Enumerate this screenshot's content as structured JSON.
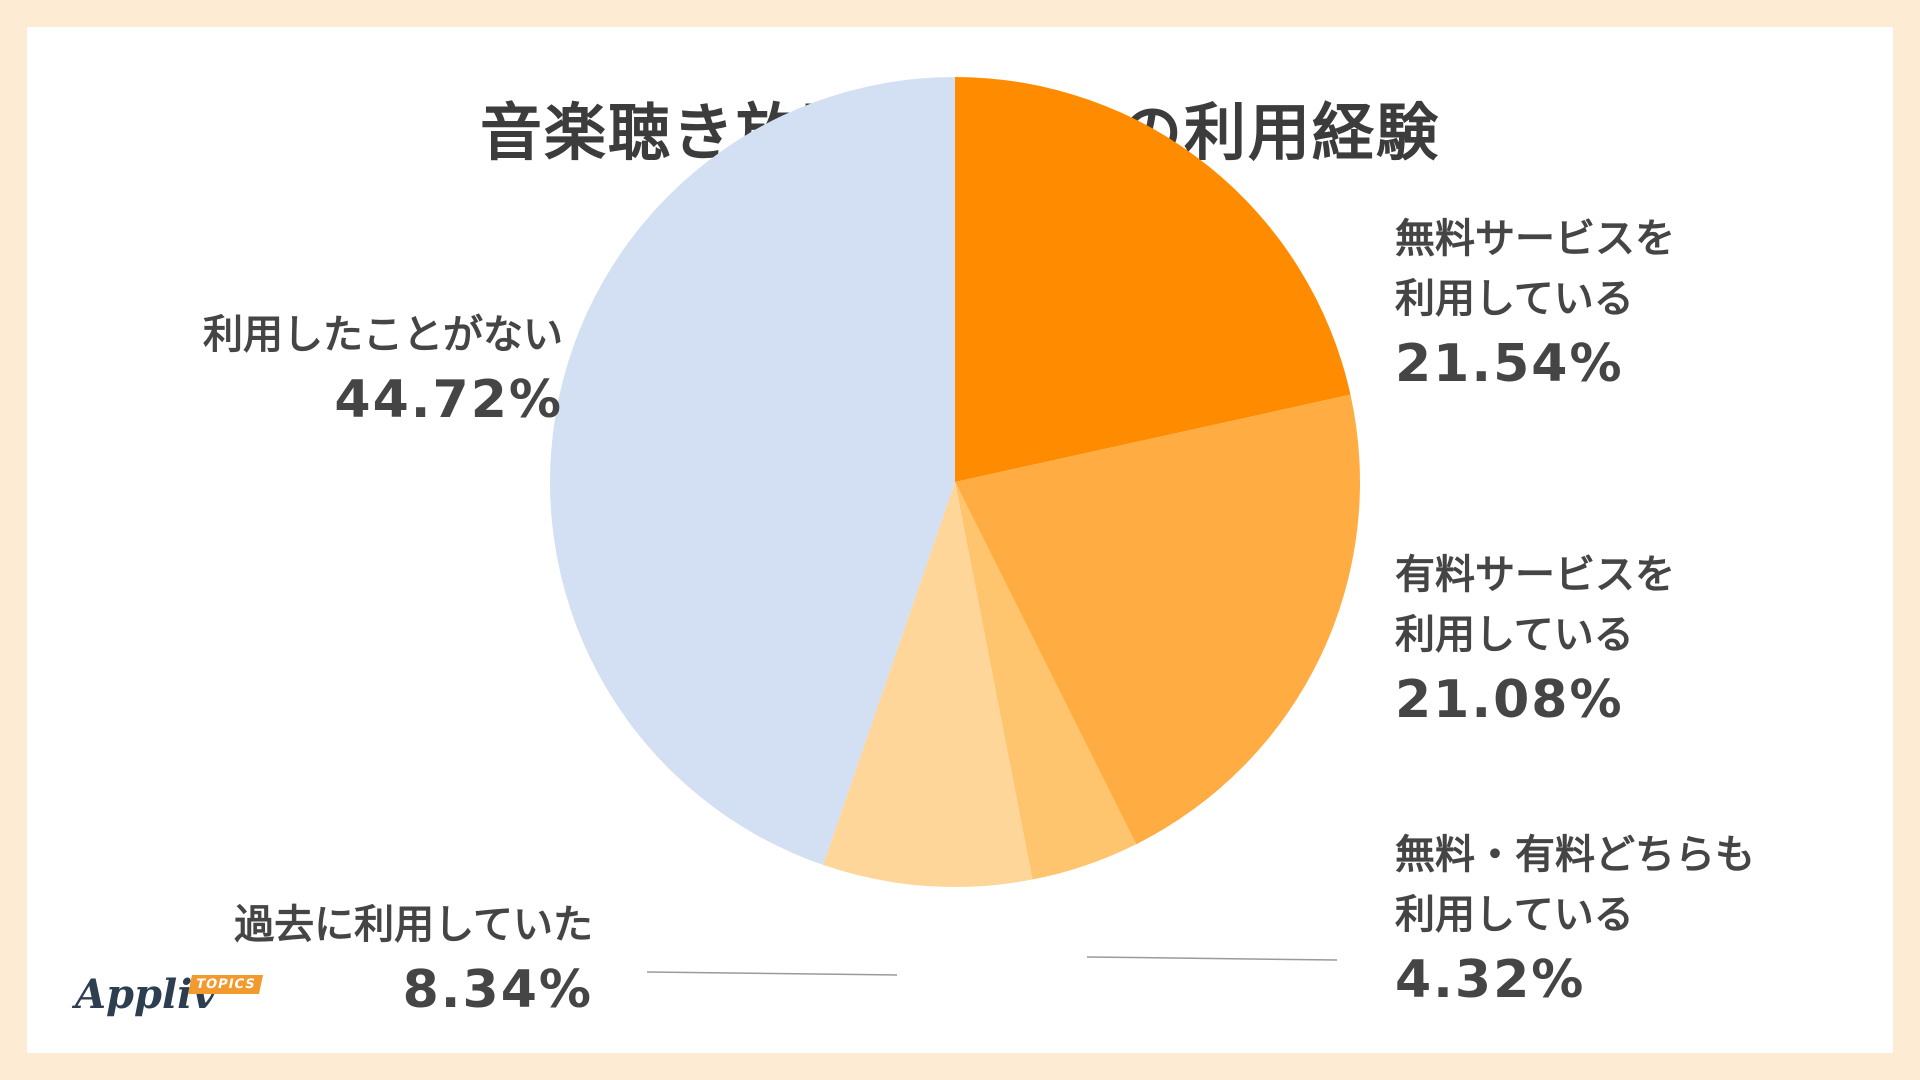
{
  "title": "音楽聴き放題サービスの利用経験",
  "logo": {
    "text": "Appliv",
    "tag": "TOPICS"
  },
  "chart_data": {
    "type": "pie",
    "title": "音楽聴き放題サービスの利用経験",
    "unit": "%",
    "slices": [
      {
        "label_lines": [
          "無料サービスを",
          "利用している"
        ],
        "value": 21.54,
        "value_text": "21.54%",
        "color": "#ff8c00"
      },
      {
        "label_lines": [
          "有料サービスを",
          "利用している"
        ],
        "value": 21.08,
        "value_text": "21.08%",
        "color": "#ffad42"
      },
      {
        "label_lines": [
          "無料・有料どちらも",
          "利用している"
        ],
        "value": 4.32,
        "value_text": "4.32%",
        "color": "#ffc56e"
      },
      {
        "label_lines": [
          "過去に利用していた"
        ],
        "value": 8.34,
        "value_text": "8.34%",
        "color": "#ffd699"
      },
      {
        "label_lines": [
          "利用したことがない"
        ],
        "value": 44.72,
        "value_text": "44.72%",
        "color": "#d3dff2"
      }
    ]
  }
}
